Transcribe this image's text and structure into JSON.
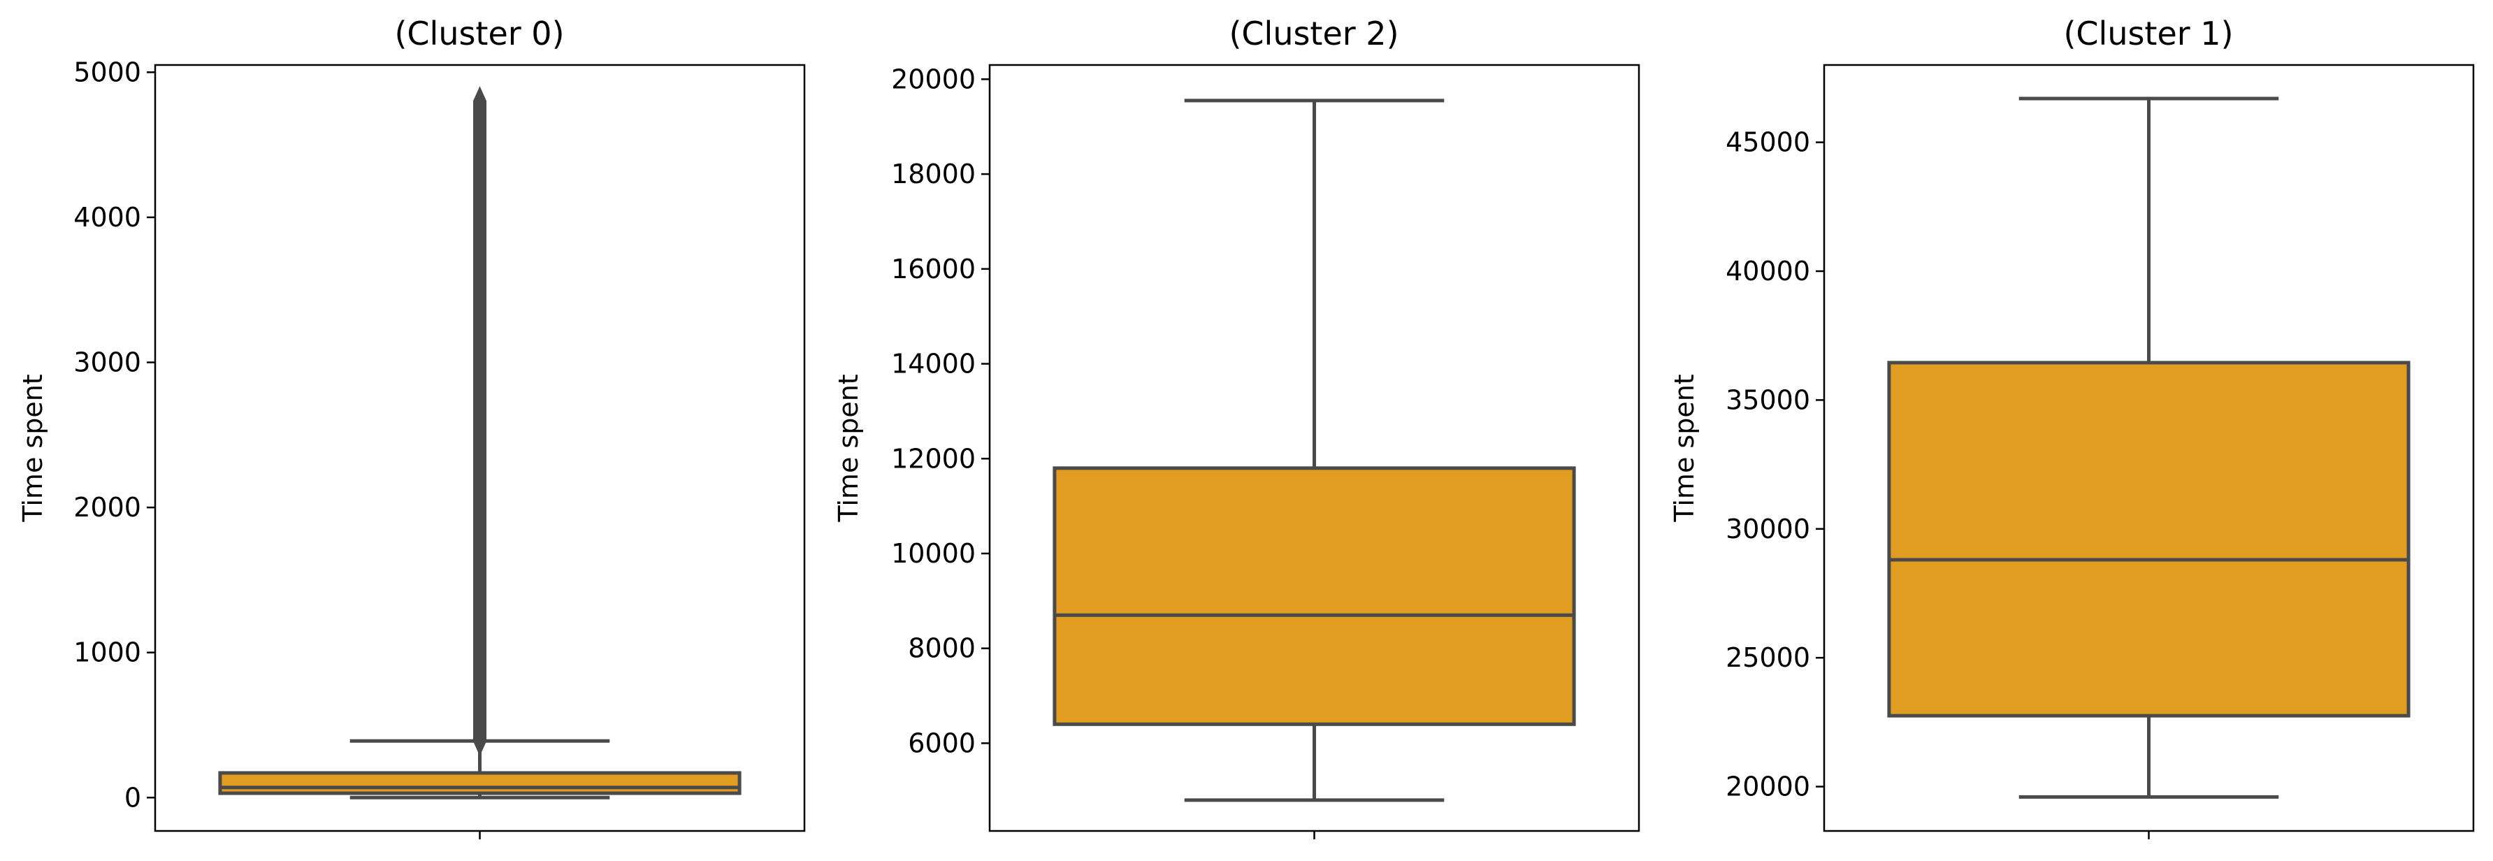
{
  "colors": {
    "box_fill": "#E09D21",
    "line": "#4A4A4A"
  },
  "chart_data": [
    {
      "type": "box",
      "title": "(Cluster 0)",
      "ylabel": "Time spent",
      "ylim": [
        -230,
        5050
      ],
      "yticks": [
        0,
        1000,
        2000,
        3000,
        4000,
        5000
      ],
      "ytick_labels": [
        "0",
        "1000",
        "2000",
        "3000",
        "4000",
        "5000"
      ],
      "stats": {
        "whisker_low": 0,
        "q1": 30,
        "median": 70,
        "q3": 170,
        "whisker_high": 390
      },
      "outliers_range": [
        340,
        4850
      ]
    },
    {
      "type": "box",
      "title": "(Cluster 2)",
      "ylabel": "Time spent",
      "ylim": [
        4150,
        20300
      ],
      "yticks": [
        6000,
        8000,
        10000,
        12000,
        14000,
        16000,
        18000,
        20000
      ],
      "ytick_labels": [
        "6000",
        "8000",
        "10000",
        "12000",
        "14000",
        "16000",
        "18000",
        "20000"
      ],
      "stats": {
        "whisker_low": 4800,
        "q1": 6400,
        "median": 8700,
        "q3": 11800,
        "whisker_high": 19550
      },
      "outliers_range": null
    },
    {
      "type": "box",
      "title": "(Cluster 1)",
      "ylabel": "Time spent",
      "ylim": [
        18280,
        48000
      ],
      "yticks": [
        20000,
        25000,
        30000,
        35000,
        40000,
        45000
      ],
      "ytick_labels": [
        "20000",
        "25000",
        "30000",
        "35000",
        "40000",
        "45000"
      ],
      "stats": {
        "whisker_low": 19600,
        "q1": 22750,
        "median": 28800,
        "q3": 36450,
        "whisker_high": 46700
      },
      "outliers_range": null
    }
  ]
}
